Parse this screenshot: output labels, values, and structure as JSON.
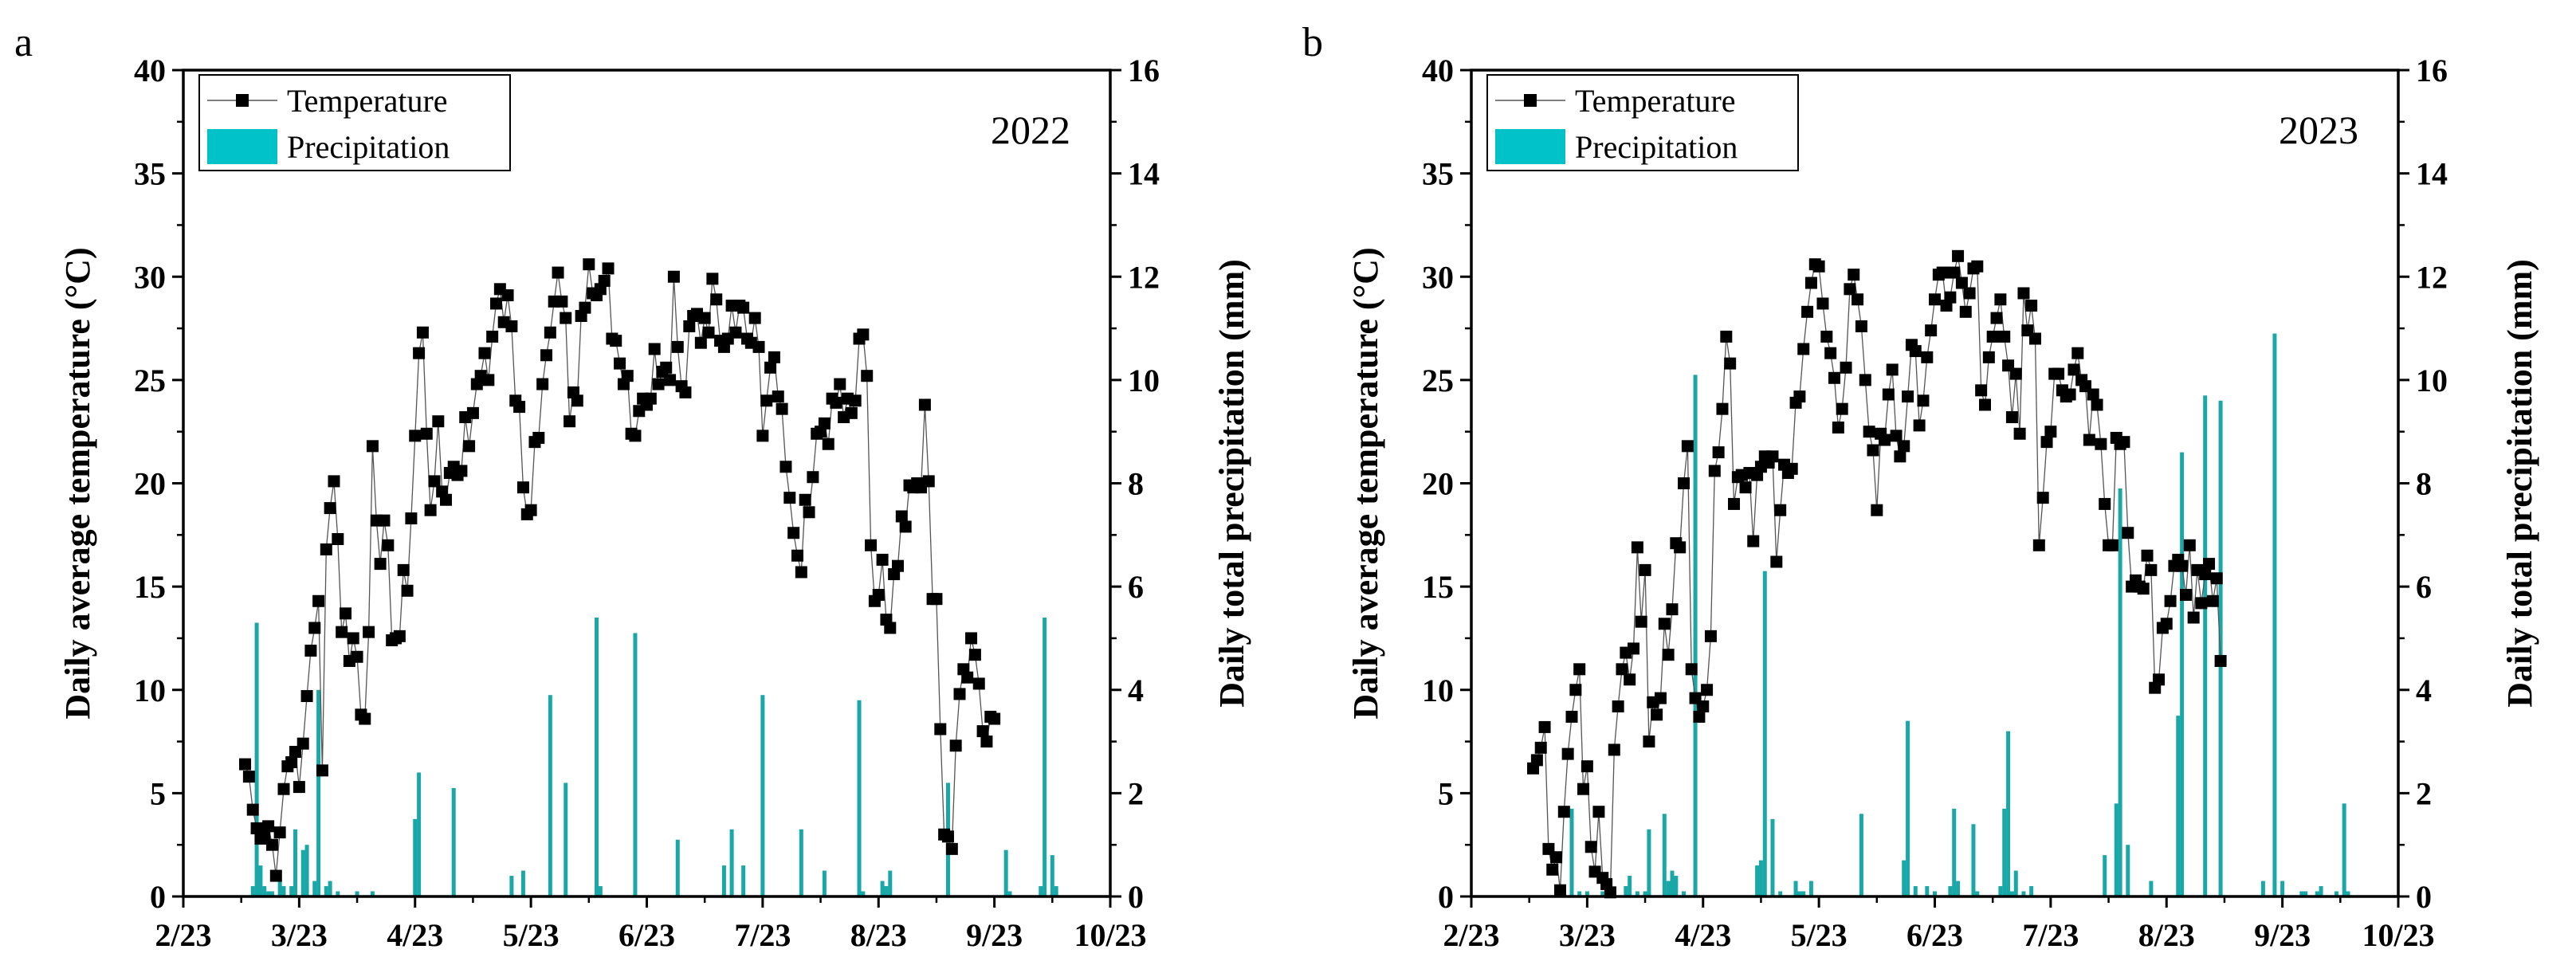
{
  "colors": {
    "temperature": "#000000",
    "precipitation": "#1aa7a7",
    "legend_precip_fill": "#00c2c8"
  },
  "chart_data": [
    {
      "type": "line",
      "panel_label": "a",
      "year_label": "2022",
      "xlabel": "",
      "ylabel_left": "Daily  average temperature (°C)",
      "ylabel_right": "Daily total precipitation (mm)",
      "legend": {
        "temperature": "Temperature",
        "precipitation": "Precipitation",
        "placement": "top-left"
      },
      "x_ticks": [
        "2/23",
        "3/23",
        "4/23",
        "5/23",
        "6/23",
        "7/23",
        "8/23",
        "9/23",
        "10/23"
      ],
      "xlim_days": [
        0,
        240
      ],
      "ylim_left": [
        0,
        40
      ],
      "ylim_right": [
        0,
        16
      ],
      "yticks_left": [
        0,
        5,
        10,
        15,
        20,
        25,
        30,
        35,
        40
      ],
      "yticks_right": [
        0,
        2,
        4,
        6,
        8,
        10,
        12,
        14,
        16
      ],
      "temperature": {
        "start_day": 16,
        "values": [
          6.4,
          5.8,
          4.2,
          3.3,
          2.8,
          2.9,
          3.4,
          2.5,
          1.0,
          3.1,
          5.2,
          6.3,
          6.5,
          7.0,
          5.3,
          7.4,
          9.7,
          11.9,
          13.0,
          14.3,
          6.1,
          16.8,
          18.8,
          20.1,
          17.3,
          12.8,
          13.7,
          11.4,
          12.5,
          11.6,
          8.8,
          8.6,
          12.8,
          21.8,
          18.2,
          16.1,
          18.2,
          17.0,
          12.4,
          12.5,
          12.6,
          15.8,
          14.8,
          18.3,
          22.3,
          26.3,
          27.3,
          22.4,
          18.7,
          20.1,
          23.0,
          19.6,
          19.2,
          20.5,
          20.8,
          20.4,
          20.6,
          23.2,
          21.8,
          23.4,
          24.8,
          25.2,
          26.3,
          25.0,
          27.1,
          28.7,
          29.4,
          27.8,
          29.1,
          27.6,
          24.0,
          23.7,
          19.8,
          18.5,
          18.7,
          22.0,
          22.2,
          24.8,
          26.2,
          27.3,
          28.8,
          30.2,
          28.8,
          28.0,
          23.0,
          24.4,
          24.0,
          28.1,
          28.5,
          30.6,
          29.2,
          29.1,
          29.4,
          29.8,
          30.4,
          27.0,
          26.9,
          25.8,
          24.8,
          25.2,
          22.4,
          22.3,
          23.5,
          24.1,
          23.8,
          24.1,
          26.5,
          24.8,
          25.4,
          25.6,
          25.0,
          30.0,
          26.6,
          24.7,
          24.4,
          27.6,
          28.1,
          28.2,
          26.8,
          28.0,
          27.3,
          29.9,
          28.9,
          26.9,
          26.6,
          27.0,
          28.6,
          27.3,
          28.6,
          28.5,
          27.0,
          26.8,
          28.0,
          26.6,
          22.3,
          24.0,
          25.6,
          26.1,
          24.2,
          23.6,
          20.8,
          19.3,
          17.6,
          16.5,
          15.7,
          19.2,
          18.6,
          20.3,
          22.4,
          22.5,
          22.9,
          21.9,
          24.1,
          23.9,
          24.8,
          23.2,
          24.1,
          23.4,
          24.0,
          27.0,
          27.2,
          25.2,
          17.0,
          14.3,
          14.6,
          16.3,
          13.4,
          13.0,
          15.6,
          16.0,
          18.4,
          17.9,
          19.9,
          19.8,
          20.0,
          19.8,
          23.8,
          20.1,
          14.4,
          14.4,
          8.1,
          3.0,
          2.9,
          2.3,
          7.3,
          9.8,
          11.0,
          10.6,
          12.5,
          11.7,
          10.3,
          8.0,
          7.5,
          8.7,
          8.6
        ]
      },
      "precipitation": {
        "days": [
          18,
          19,
          20,
          21,
          22,
          23,
          25,
          26,
          28,
          29,
          31,
          32,
          34,
          35,
          37,
          38,
          40,
          45,
          49,
          60,
          61,
          70,
          85,
          88,
          95,
          99,
          107,
          108,
          117,
          128,
          140,
          142,
          145,
          150,
          160,
          166,
          175,
          176,
          181,
          182,
          183,
          198,
          213,
          214,
          222,
          223,
          225,
          226
        ],
        "values": [
          0.2,
          5.3,
          0.6,
          0.2,
          0.1,
          0.1,
          0.3,
          0.2,
          0.2,
          1.3,
          0.9,
          1.0,
          0.3,
          4.0,
          0.2,
          0.3,
          0.1,
          0.1,
          0.1,
          1.5,
          2.4,
          2.1,
          0.4,
          0.5,
          3.9,
          2.2,
          5.4,
          0.2,
          5.1,
          1.1,
          0.6,
          1.3,
          0.6,
          3.9,
          1.3,
          0.5,
          3.8,
          0.1,
          0.3,
          0.2,
          0.5,
          2.2,
          0.9,
          0.1,
          0.2,
          5.4,
          0.8,
          0.2
        ]
      }
    },
    {
      "type": "line",
      "panel_label": "b",
      "year_label": "2023",
      "xlabel": "",
      "ylabel_left": "Daily  average temperature (°C)",
      "ylabel_right": "Daily total precipitation (mm)",
      "legend": {
        "temperature": "Temperature",
        "precipitation": "Precipitation",
        "placement": "top-left"
      },
      "x_ticks": [
        "2/23",
        "3/23",
        "4/23",
        "5/23",
        "6/23",
        "7/23",
        "8/23",
        "9/23",
        "10/23"
      ],
      "xlim_days": [
        0,
        240
      ],
      "ylim_left": [
        0,
        40
      ],
      "ylim_right": [
        0,
        16
      ],
      "yticks_left": [
        0,
        5,
        10,
        15,
        20,
        25,
        30,
        35,
        40
      ],
      "yticks_right": [
        0,
        2,
        4,
        6,
        8,
        10,
        12,
        14,
        16
      ],
      "temperature": {
        "start_day": 16,
        "values": [
          6.2,
          6.6,
          7.2,
          8.2,
          2.3,
          1.3,
          1.9,
          0.3,
          4.1,
          6.9,
          8.7,
          10.0,
          11.0,
          5.2,
          6.3,
          2.4,
          1.2,
          4.1,
          0.9,
          0.6,
          0.2,
          7.1,
          9.2,
          11.0,
          11.8,
          10.5,
          12.0,
          16.9,
          13.3,
          15.8,
          7.5,
          9.4,
          8.8,
          9.6,
          13.2,
          11.7,
          13.9,
          17.1,
          16.9,
          20.0,
          21.8,
          11.0,
          9.6,
          8.7,
          9.2,
          10.0,
          12.6,
          20.6,
          21.5,
          23.6,
          27.1,
          25.8,
          19.0,
          20.3,
          20.4,
          19.8,
          20.5,
          17.2,
          20.4,
          20.8,
          21.3,
          21.0,
          21.3,
          16.2,
          18.7,
          20.9,
          20.5,
          20.7,
          23.9,
          24.2,
          26.5,
          28.3,
          29.7,
          30.6,
          30.5,
          28.7,
          27.1,
          26.3,
          25.1,
          22.7,
          23.6,
          25.6,
          29.4,
          30.1,
          28.9,
          27.6,
          25.0,
          22.5,
          21.6,
          18.7,
          22.4,
          22.1,
          24.3,
          25.5,
          22.3,
          21.3,
          21.8,
          24.2,
          26.7,
          26.4,
          22.8,
          24.0,
          26.1,
          27.4,
          28.9,
          30.1,
          30.2,
          28.6,
          29.0,
          30.2,
          31.0,
          29.7,
          28.3,
          29.2,
          30.4,
          30.5,
          24.5,
          23.8,
          26.1,
          27.1,
          28.0,
          28.9,
          27.1,
          25.7,
          23.2,
          25.3,
          22.4,
          29.2,
          27.4,
          28.6,
          27.0,
          17.0,
          19.3,
          22.0,
          22.5,
          25.3,
          25.3,
          24.5,
          24.2,
          24.3,
          25.5,
          26.3,
          25.0,
          24.7,
          22.1,
          24.3,
          23.8,
          21.9,
          19.0,
          17.0,
          17.0,
          22.2,
          21.9,
          22.0,
          17.6,
          15.0,
          15.3,
          15.0,
          14.9,
          16.5,
          15.8,
          10.1,
          10.5,
          13.0,
          13.2,
          14.3,
          16.0,
          16.3,
          16.0,
          14.6,
          17.0,
          13.5,
          15.8,
          14.2,
          15.6,
          16.1,
          14.3,
          15.4,
          11.4
        ]
      },
      "precipitation": {
        "days": [
          23,
          26,
          28,
          30,
          34,
          35,
          40,
          41,
          43,
          45,
          46,
          50,
          51,
          52,
          53,
          55,
          58,
          74,
          75,
          76,
          78,
          80,
          84,
          85,
          86,
          88,
          101,
          112,
          113,
          115,
          118,
          120,
          124,
          125,
          126,
          130,
          131,
          137,
          138,
          139,
          140,
          141,
          143,
          145,
          164,
          167,
          168,
          170,
          176,
          183,
          184,
          190,
          194,
          205,
          208,
          210,
          215,
          216,
          219,
          220,
          224,
          226,
          227
        ],
        "values": [
          0.1,
          1.7,
          0.1,
          0.1,
          0.1,
          0.1,
          0.2,
          0.4,
          0.1,
          0.1,
          1.3,
          1.6,
          0.3,
          0.5,
          0.4,
          0.1,
          10.1,
          0.6,
          0.7,
          6.3,
          1.5,
          0.1,
          0.3,
          0.1,
          0.1,
          0.3,
          1.6,
          0.7,
          3.4,
          0.2,
          0.2,
          0.1,
          0.2,
          1.7,
          0.3,
          1.4,
          0.1,
          0.2,
          1.7,
          3.2,
          0.1,
          0.5,
          0.1,
          0.2,
          0.8,
          1.8,
          7.9,
          1.0,
          0.3,
          3.5,
          8.6,
          9.7,
          9.6,
          0.3,
          10.9,
          0.3,
          0.1,
          0.1,
          0.1,
          0.2,
          0.1,
          1.8,
          0.1
        ]
      }
    }
  ]
}
